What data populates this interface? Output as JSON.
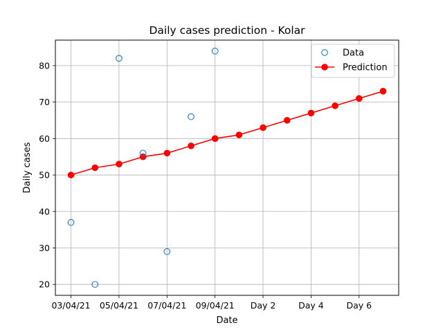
{
  "chart_data": {
    "type": "line",
    "title": "Daily cases prediction - Kolar",
    "xlabel": "Date",
    "ylabel": "Daily cases",
    "x_ticks": [
      "03/04/21",
      "05/04/21",
      "07/04/21",
      "09/04/21",
      "Day 2",
      "Day 4",
      "Day 6"
    ],
    "x_tick_positions": [
      0,
      2,
      4,
      6,
      8,
      10,
      12
    ],
    "x_range": [
      -0.65,
      13.65
    ],
    "ylim": [
      17,
      87
    ],
    "y_ticks": [
      20,
      30,
      40,
      50,
      60,
      70,
      80
    ],
    "grid": true,
    "legend_position": "top-right",
    "series": [
      {
        "name": "Data",
        "style": "scatter-hollow",
        "color": "#1f77b4",
        "points": [
          [
            0,
            37
          ],
          [
            1,
            20
          ],
          [
            2,
            82
          ],
          [
            3,
            56
          ],
          [
            4,
            29
          ],
          [
            5,
            66
          ],
          [
            6,
            84
          ]
        ]
      },
      {
        "name": "Prediction",
        "style": "line-marker",
        "color": "#ff0000",
        "points": [
          [
            0,
            50
          ],
          [
            1,
            52
          ],
          [
            2,
            53
          ],
          [
            3,
            55
          ],
          [
            4,
            56
          ],
          [
            5,
            58
          ],
          [
            6,
            60
          ],
          [
            7,
            61
          ],
          [
            8,
            63
          ],
          [
            9,
            65
          ],
          [
            10,
            67
          ],
          [
            11,
            69
          ],
          [
            12,
            71
          ],
          [
            13,
            73
          ]
        ]
      }
    ]
  }
}
